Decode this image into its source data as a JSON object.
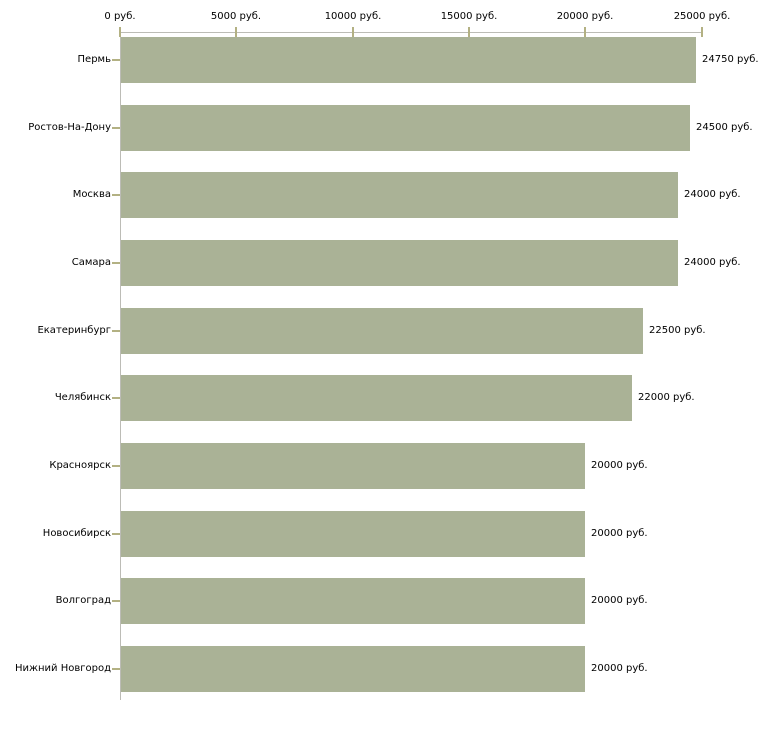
{
  "chart_data": {
    "type": "bar",
    "orientation": "horizontal",
    "title": "",
    "xlabel": "",
    "ylabel": "",
    "unit": "руб.",
    "xlim": [
      0,
      25000
    ],
    "grid": false,
    "legend": null,
    "categories": [
      "Пермь",
      "Ростов-На-Дону",
      "Москва",
      "Самара",
      "Екатеринбург",
      "Челябинск",
      "Красноярск",
      "Новосибирск",
      "Волгоград",
      "Нижний Новгород"
    ],
    "values": [
      24750,
      24500,
      24000,
      24000,
      22500,
      22000,
      20000,
      20000,
      20000,
      20000
    ],
    "value_labels": [
      "24750 руб.",
      "24500 руб.",
      "24000 руб.",
      "24000 руб.",
      "22500 руб.",
      "22000 руб.",
      "20000 руб.",
      "20000 руб.",
      "20000 руб.",
      "20000 руб."
    ],
    "x_ticks": {
      "values": [
        0,
        5000,
        10000,
        15000,
        20000,
        25000
      ],
      "labels": [
        "0 руб.",
        "5000 руб.",
        "10000 руб.",
        "15000 руб.",
        "20000 руб.",
        "25000 руб."
      ]
    },
    "colors": {
      "bar_fill": "#aab296",
      "axis_line": "#bcbcb6",
      "tick_mark": "#b3b183",
      "text": "#000000",
      "background": "#ffffff"
    }
  }
}
